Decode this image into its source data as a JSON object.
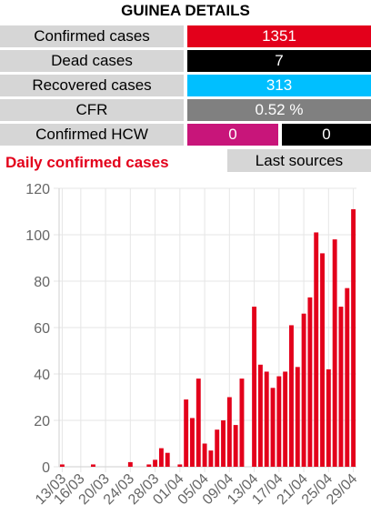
{
  "title": "GUINEA DETAILS",
  "stats": [
    {
      "label": "Confirmed cases",
      "value": "1351",
      "color": "#e3001b"
    },
    {
      "label": "Dead cases",
      "value": "7",
      "color": "#000000"
    },
    {
      "label": "Recovered cases",
      "value": "313",
      "color": "#00bfff"
    },
    {
      "label": "CFR",
      "value": "0.52 %",
      "color": "#808080"
    }
  ],
  "hcw": {
    "label": "Confirmed HCW",
    "value_a": "0",
    "value_b": "0",
    "color_a": "#c8157a",
    "color_b": "#000000"
  },
  "section_title": "Daily confirmed cases",
  "section_title_color": "#e3001b",
  "last_sources_label": "Last sources",
  "chart_data": {
    "type": "bar",
    "color": "#e3001b",
    "ylim": [
      0,
      120
    ],
    "yticks": [
      0,
      20,
      40,
      60,
      80,
      100,
      120
    ],
    "grid": true,
    "xtick_labels": [
      "13/03",
      "16/03",
      "20/03",
      "24/03",
      "28/03",
      "01/04",
      "05/04",
      "09/04",
      "13/04",
      "17/04",
      "21/04",
      "25/04",
      "29/04"
    ],
    "xtick_days": [
      0,
      3,
      7,
      11,
      15,
      19,
      23,
      27,
      31,
      35,
      39,
      43,
      47
    ],
    "dates": [
      "13/03",
      "14/03",
      "15/03",
      "16/03",
      "17/03",
      "18/03",
      "19/03",
      "20/03",
      "21/03",
      "22/03",
      "23/03",
      "24/03",
      "25/03",
      "26/03",
      "27/03",
      "28/03",
      "29/03",
      "30/03",
      "31/03",
      "01/04",
      "02/04",
      "03/04",
      "04/04",
      "05/04",
      "06/04",
      "07/04",
      "08/04",
      "09/04",
      "10/04",
      "11/04",
      "12/04",
      "13/04",
      "14/04",
      "15/04",
      "16/04",
      "17/04",
      "18/04",
      "19/04",
      "20/04",
      "21/04",
      "22/04",
      "23/04",
      "24/04",
      "25/04",
      "26/04",
      "27/04",
      "28/04",
      "29/04"
    ],
    "values": [
      1,
      0,
      0,
      0,
      0,
      1,
      0,
      0,
      0,
      0,
      0,
      2,
      0,
      0,
      1,
      3,
      8,
      6,
      0,
      1,
      29,
      21,
      38,
      10,
      7,
      16,
      20,
      30,
      18,
      38,
      0,
      69,
      44,
      41,
      34,
      39,
      41,
      61,
      43,
      66,
      73,
      101,
      92,
      42,
      98,
      69,
      77,
      111
    ]
  }
}
